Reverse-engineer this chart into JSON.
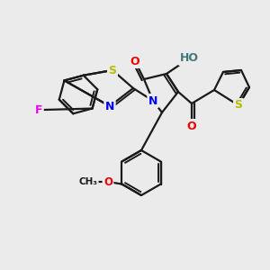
{
  "bg_color": "#ebebeb",
  "bond_color": "#1a1a1a",
  "atom_colors": {
    "F": "#ee00ee",
    "S": "#bbbb00",
    "N": "#0000ee",
    "O": "#ee0000",
    "H": "#447777",
    "C": "#1a1a1a"
  },
  "figsize": [
    3.0,
    3.0
  ],
  "dpi": 100
}
